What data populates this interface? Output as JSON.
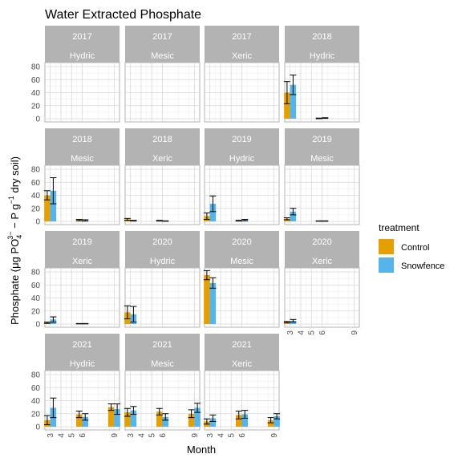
{
  "chart_data": {
    "type": "bar",
    "title": "Water Extracted Phosphate",
    "xlabel": "Month",
    "ylabel": {
      "main": "Phosphate (μg PO",
      "sub": "4",
      "sup": "3−",
      "mid": " − P g",
      "sup2": "−1",
      "end": " dry soil)"
    },
    "ylim": [
      0,
      80
    ],
    "yticks": [
      0,
      20,
      40,
      60,
      80
    ],
    "xlim": [
      2.5,
      9.5
    ],
    "xticks": [
      3,
      4,
      5,
      6,
      9
    ],
    "grid": true,
    "facet_layout": "4 columns by 4 rows",
    "legend": {
      "title": "treatment",
      "position": "right",
      "entries": [
        {
          "name": "Control",
          "color": "#E69F00"
        },
        {
          "name": "Snowfence",
          "color": "#56B4E9"
        }
      ]
    },
    "panels": [
      {
        "year": "2017",
        "site": "Hydric",
        "bars": []
      },
      {
        "year": "2017",
        "site": "Mesic",
        "bars": []
      },
      {
        "year": "2017",
        "site": "Xeric",
        "bars": []
      },
      {
        "year": "2018",
        "site": "Hydric",
        "bars": [
          {
            "month": 3,
            "treatment": "Control",
            "value": 40,
            "err": 17
          },
          {
            "month": 3,
            "treatment": "Snowfence",
            "value": 52,
            "err": 15
          },
          {
            "month": 6,
            "treatment": "Control",
            "value": 0.5,
            "err": 0.5
          },
          {
            "month": 6,
            "treatment": "Snowfence",
            "value": 1,
            "err": 0.5
          }
        ]
      },
      {
        "year": "2018",
        "site": "Mesic",
        "bars": [
          {
            "month": 3,
            "treatment": "Control",
            "value": 40,
            "err": 7
          },
          {
            "month": 3,
            "treatment": "Snowfence",
            "value": 47,
            "err": 20
          },
          {
            "month": 6,
            "treatment": "Control",
            "value": 2,
            "err": 1
          },
          {
            "month": 6,
            "treatment": "Snowfence",
            "value": 1.5,
            "err": 1
          }
        ]
      },
      {
        "year": "2018",
        "site": "Xeric",
        "bars": [
          {
            "month": 3,
            "treatment": "Control",
            "value": 3,
            "err": 1.5
          },
          {
            "month": 3,
            "treatment": "Snowfence",
            "value": 1,
            "err": 0.5
          },
          {
            "month": 6,
            "treatment": "Control",
            "value": 1,
            "err": 0.5
          },
          {
            "month": 6,
            "treatment": "Snowfence",
            "value": 0.5,
            "err": 0.3
          }
        ]
      },
      {
        "year": "2019",
        "site": "Hydric",
        "bars": [
          {
            "month": 3,
            "treatment": "Control",
            "value": 8,
            "err": 5
          },
          {
            "month": 3,
            "treatment": "Snowfence",
            "value": 27,
            "err": 12
          },
          {
            "month": 6,
            "treatment": "Control",
            "value": 1,
            "err": 0.5
          },
          {
            "month": 6,
            "treatment": "Snowfence",
            "value": 2,
            "err": 1
          }
        ]
      },
      {
        "year": "2019",
        "site": "Mesic",
        "bars": [
          {
            "month": 3,
            "treatment": "Control",
            "value": 4,
            "err": 1.5
          },
          {
            "month": 3,
            "treatment": "Snowfence",
            "value": 15,
            "err": 5
          },
          {
            "month": 6,
            "treatment": "Control",
            "value": 0.5,
            "err": 0.3
          },
          {
            "month": 6,
            "treatment": "Snowfence",
            "value": 0.5,
            "err": 0.3
          }
        ]
      },
      {
        "year": "2019",
        "site": "Xeric",
        "bars": [
          {
            "month": 3,
            "treatment": "Control",
            "value": 2,
            "err": 1
          },
          {
            "month": 3,
            "treatment": "Snowfence",
            "value": 7,
            "err": 4
          },
          {
            "month": 6,
            "treatment": "Control",
            "value": 0.5,
            "err": 0.3
          },
          {
            "month": 6,
            "treatment": "Snowfence",
            "value": 0.5,
            "err": 0.3
          }
        ]
      },
      {
        "year": "2020",
        "site": "Hydric",
        "bars": [
          {
            "month": 3,
            "treatment": "Control",
            "value": 18,
            "err": 10
          },
          {
            "month": 3,
            "treatment": "Snowfence",
            "value": 15,
            "err": 12
          }
        ]
      },
      {
        "year": "2020",
        "site": "Mesic",
        "bars": [
          {
            "month": 3,
            "treatment": "Control",
            "value": 75,
            "err": 7
          },
          {
            "month": 3,
            "treatment": "Snowfence",
            "value": 63,
            "err": 8
          }
        ]
      },
      {
        "year": "2020",
        "site": "Xeric",
        "bars": [
          {
            "month": 3,
            "treatment": "Control",
            "value": 3,
            "err": 1
          },
          {
            "month": 3,
            "treatment": "Snowfence",
            "value": 5,
            "err": 2
          }
        ]
      },
      {
        "year": "2021",
        "site": "Hydric",
        "bars": [
          {
            "month": 3,
            "treatment": "Control",
            "value": 10,
            "err": 7
          },
          {
            "month": 3,
            "treatment": "Snowfence",
            "value": 29,
            "err": 15
          },
          {
            "month": 6,
            "treatment": "Control",
            "value": 19,
            "err": 5
          },
          {
            "month": 6,
            "treatment": "Snowfence",
            "value": 15,
            "err": 5
          },
          {
            "month": 9,
            "treatment": "Control",
            "value": 30,
            "err": 5
          },
          {
            "month": 9,
            "treatment": "Snowfence",
            "value": 27,
            "err": 8
          }
        ]
      },
      {
        "year": "2021",
        "site": "Mesic",
        "bars": [
          {
            "month": 3,
            "treatment": "Control",
            "value": 22,
            "err": 6
          },
          {
            "month": 3,
            "treatment": "Snowfence",
            "value": 25,
            "err": 6
          },
          {
            "month": 6,
            "treatment": "Control",
            "value": 23,
            "err": 5
          },
          {
            "month": 6,
            "treatment": "Snowfence",
            "value": 15,
            "err": 5
          },
          {
            "month": 9,
            "treatment": "Control",
            "value": 20,
            "err": 6
          },
          {
            "month": 9,
            "treatment": "Snowfence",
            "value": 29,
            "err": 7
          }
        ]
      },
      {
        "year": "2021",
        "site": "Xeric",
        "bars": [
          {
            "month": 3,
            "treatment": "Control",
            "value": 8,
            "err": 4
          },
          {
            "month": 3,
            "treatment": "Snowfence",
            "value": 13,
            "err": 5
          },
          {
            "month": 6,
            "treatment": "Control",
            "value": 18,
            "err": 6
          },
          {
            "month": 6,
            "treatment": "Snowfence",
            "value": 19,
            "err": 6
          },
          {
            "month": 9,
            "treatment": "Control",
            "value": 10,
            "err": 4
          },
          {
            "month": 9,
            "treatment": "Snowfence",
            "value": 16,
            "err": 4
          }
        ]
      }
    ]
  }
}
